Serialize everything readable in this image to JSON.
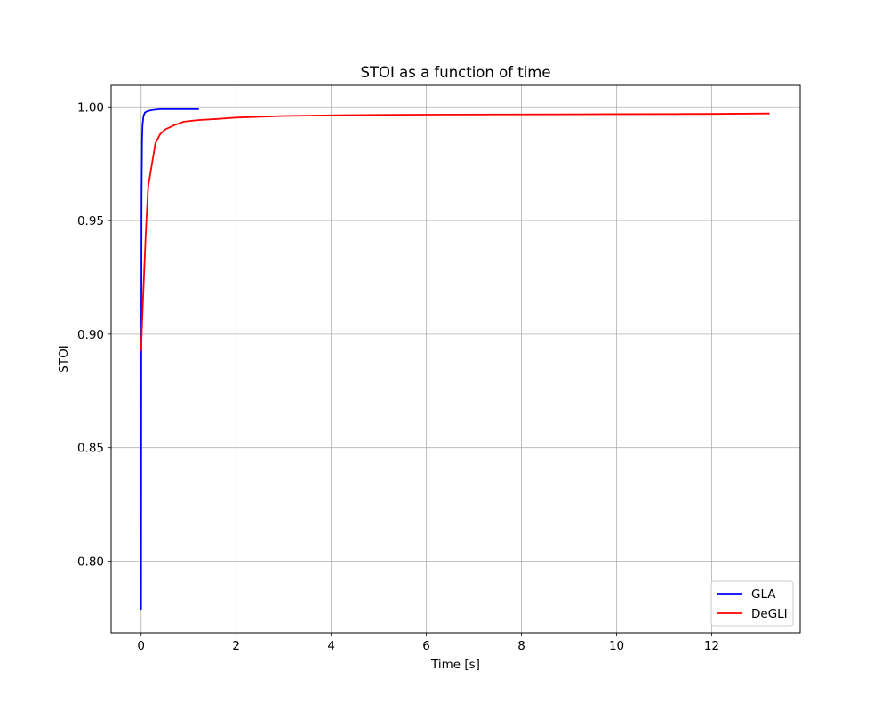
{
  "chart_data": {
    "type": "line",
    "title": "STOI as a function of time",
    "xlabel": "Time [s]",
    "ylabel": "STOI",
    "xlim": [
      -0.63,
      13.86
    ],
    "ylim": [
      0.7685,
      1.0095
    ],
    "xticks": [
      0,
      2,
      4,
      6,
      8,
      10,
      12
    ],
    "xtick_labels": [
      "0",
      "2",
      "4",
      "6",
      "8",
      "10",
      "12"
    ],
    "yticks": [
      0.8,
      0.85,
      0.9,
      0.95,
      1.0
    ],
    "ytick_labels": [
      "0.80",
      "0.85",
      "0.90",
      "0.95",
      "1.00"
    ],
    "grid": true,
    "legend_position": "lower right",
    "series": [
      {
        "name": "GLA",
        "color": "#0000ff",
        "x": [
          0.0,
          0.005,
          0.01,
          0.02,
          0.03,
          0.05,
          0.08,
          0.12,
          0.2,
          0.3,
          0.4,
          0.6,
          0.8,
          1.0,
          1.2
        ],
        "y": [
          0.779,
          0.9,
          0.96,
          0.985,
          0.992,
          0.996,
          0.9975,
          0.998,
          0.9985,
          0.9988,
          0.999,
          0.999,
          0.999,
          0.999,
          0.999
        ]
      },
      {
        "name": "DeGLI",
        "color": "#ff0000",
        "x": [
          0.0,
          0.05,
          0.1,
          0.15,
          0.3,
          0.4,
          0.5,
          0.7,
          0.9,
          1.2,
          1.6,
          2.0,
          3.0,
          4.0,
          5.0,
          6.0,
          8.0,
          10.0,
          12.0,
          13.2
        ],
        "y": [
          0.893,
          0.92,
          0.945,
          0.965,
          0.984,
          0.988,
          0.99,
          0.992,
          0.9935,
          0.9942,
          0.9947,
          0.9953,
          0.996,
          0.9963,
          0.9965,
          0.9966,
          0.9967,
          0.9968,
          0.9969,
          0.9971
        ]
      }
    ]
  }
}
